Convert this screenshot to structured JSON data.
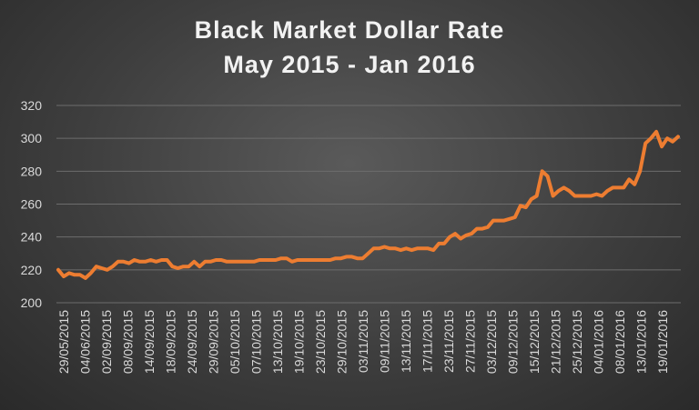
{
  "chart_data": {
    "type": "line",
    "title": "Black Market Dollar Rate",
    "subtitle": "May 2015 - Jan 2016",
    "xlabel": "",
    "ylabel": "",
    "ylim": [
      200,
      320
    ],
    "yticks": [
      200,
      220,
      240,
      260,
      280,
      300,
      320
    ],
    "grid": "horizontal",
    "line_color": "#ed7d31",
    "x_tick_labels": [
      "29/05/2015",
      "04/06/2015",
      "02/09/2015",
      "08/09/2015",
      "14/09/2015",
      "18/09/2015",
      "24/09/2015",
      "29/09/2015",
      "05/10/2015",
      "07/10/2015",
      "13/10/2015",
      "19/10/2015",
      "23/10/2015",
      "29/10/2015",
      "03/11/2015",
      "09/11/2015",
      "13/11/2015",
      "17/11/2015",
      "23/11/2015",
      "27/11/2015",
      "03/12/2015",
      "09/12/2015",
      "15/12/2015",
      "21/12/2015",
      "25/12/2015",
      "04/01/2016",
      "08/01/2016",
      "13/01/2016",
      "19/01/2016"
    ],
    "series": [
      {
        "values": [
          220,
          216,
          218,
          217,
          217,
          215,
          218,
          222,
          221,
          220,
          222,
          225,
          225,
          224,
          226,
          225,
          225,
          226,
          225,
          226,
          226,
          222,
          221,
          222,
          222,
          225,
          222,
          225,
          225,
          226,
          226,
          225,
          225,
          225,
          225,
          225,
          225,
          226,
          226,
          226,
          226,
          227,
          227,
          225,
          226,
          226,
          226,
          226,
          226,
          226,
          226,
          227,
          227,
          228,
          228,
          227,
          227,
          230,
          233,
          233,
          234,
          233,
          233,
          232,
          233,
          232,
          233,
          233,
          233,
          232,
          236,
          236,
          240,
          242,
          239,
          241,
          242,
          245,
          245,
          246,
          250,
          250,
          250,
          251,
          252,
          259,
          258,
          263,
          265,
          280,
          277,
          265,
          268,
          270,
          268,
          265,
          265,
          265,
          265,
          266,
          265,
          268,
          270,
          270,
          270,
          275,
          272,
          280,
          297,
          300,
          304,
          295,
          300,
          298,
          301
        ]
      }
    ]
  }
}
